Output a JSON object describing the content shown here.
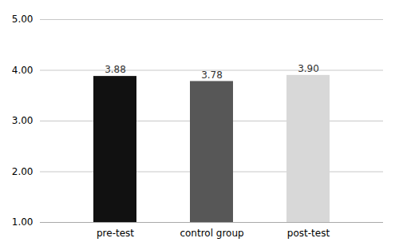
{
  "chart_data": {
    "type": "bar",
    "categories": [
      "pre-test",
      "control group",
      "post-test"
    ],
    "values": [
      3.88,
      3.78,
      3.9
    ],
    "value_labels": [
      "3.88",
      "3.78",
      "3.90"
    ],
    "data_labels": true,
    "colors": [
      "#111111",
      "#575757",
      "#d8d8d8"
    ],
    "ylim": [
      1.0,
      5.0
    ],
    "yticks": [
      {
        "value": 1,
        "label": "1.00"
      },
      {
        "value": 2,
        "label": "2.00"
      },
      {
        "value": 3,
        "label": "3.00"
      },
      {
        "value": 4,
        "label": "4.00"
      },
      {
        "value": 5,
        "label": "5.00"
      }
    ],
    "grid": true
  }
}
